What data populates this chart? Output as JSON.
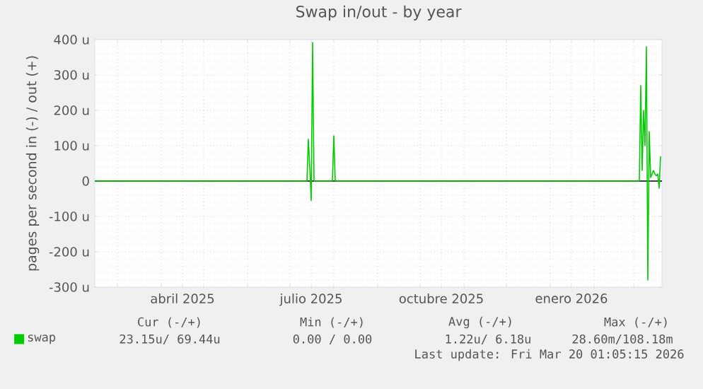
{
  "chart_data": {
    "type": "line",
    "title": "Swap in/out - by year",
    "ylabel": "pages per second in (-) / out (+)",
    "xlim": [
      "2025-02-13",
      "2026-03-21"
    ],
    "ylim": [
      -300,
      400
    ],
    "xticks": [
      {
        "value": "2025-03-01",
        "label": null
      },
      {
        "value": "2025-04-01",
        "label": null
      },
      {
        "value": "2025-04-16",
        "label": "abril 2025"
      },
      {
        "value": "2025-05-01",
        "label": null
      },
      {
        "value": "2025-06-01",
        "label": null
      },
      {
        "value": "2025-07-01",
        "label": null
      },
      {
        "value": "2025-07-16",
        "label": "julio 2025"
      },
      {
        "value": "2025-08-01",
        "label": null
      },
      {
        "value": "2025-09-01",
        "label": null
      },
      {
        "value": "2025-10-01",
        "label": null
      },
      {
        "value": "2025-10-16",
        "label": "octubre 2025"
      },
      {
        "value": "2025-11-01",
        "label": null
      },
      {
        "value": "2025-12-01",
        "label": null
      },
      {
        "value": "2026-01-01",
        "label": null
      },
      {
        "value": "2026-01-16",
        "label": "enero 2026"
      },
      {
        "value": "2026-02-01",
        "label": null
      },
      {
        "value": "2026-03-01",
        "label": null
      }
    ],
    "yticks": [
      {
        "value": -300,
        "label": "-300 u"
      },
      {
        "value": -200,
        "label": "-200 u"
      },
      {
        "value": -100,
        "label": "-100 u"
      },
      {
        "value": 0,
        "label": "0"
      },
      {
        "value": 100,
        "label": "100 u"
      },
      {
        "value": 200,
        "label": "200 u"
      },
      {
        "value": 300,
        "label": "300 u"
      },
      {
        "value": 400,
        "label": "400 u"
      }
    ],
    "grid": true,
    "legend": "bottom",
    "ref_lines": [
      {
        "axis": "y",
        "value": 0,
        "color": "#000000"
      }
    ],
    "series": [
      {
        "name": "swap",
        "color": "#00cc00",
        "x": [
          "2025-02-13",
          "2025-07-13",
          "2025-07-14",
          "2025-07-15",
          "2025-07-16",
          "2025-07-17",
          "2025-07-18",
          "2025-07-31",
          "2025-08-01",
          "2025-08-02",
          "2026-03-05",
          "2026-03-06",
          "2026-03-07",
          "2026-03-08",
          "2026-03-09",
          "2026-03-10",
          "2026-03-11",
          "2026-03-12",
          "2026-03-13",
          "2026-03-15",
          "2026-03-16",
          "2026-03-17",
          "2026-03-18",
          "2026-03-19",
          "2026-03-20"
        ],
        "values": [
          0,
          0,
          118,
          40,
          -55,
          392,
          0,
          0,
          128,
          0,
          0,
          270,
          30,
          200,
          100,
          380,
          -280,
          140,
          10,
          30,
          20,
          15,
          20,
          -20,
          70
        ]
      }
    ],
    "annotations": [
      "Cur (-/+)",
      "Min (-/+)",
      "Avg (-/+)",
      "Max (-/+)",
      "23.15u/ 69.44u",
      "0.00 /  0.00",
      "1.22u/  6.18u",
      "28.60m/108.18m",
      "Last update: Fri Mar 20 01:05:15 2026"
    ]
  }
}
